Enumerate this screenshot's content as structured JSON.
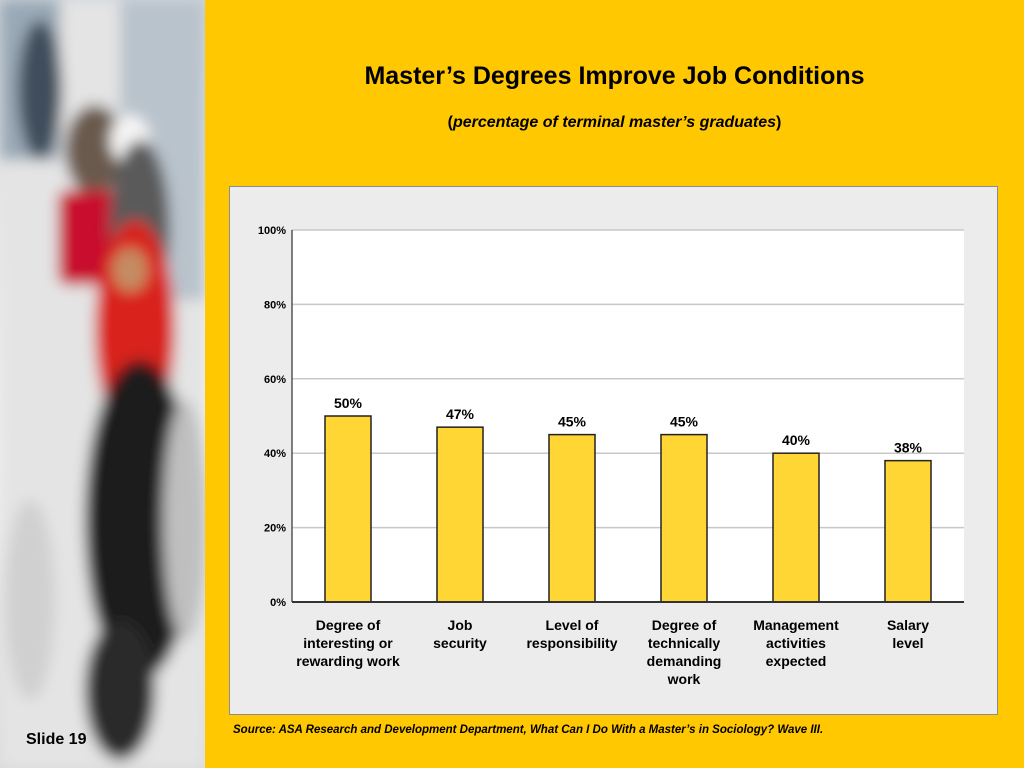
{
  "slide": {
    "title": "Master’s Degrees Improve Job Conditions",
    "subtitle_italic": "percentage of terminal master’s graduates",
    "subtitle_open": "(",
    "subtitle_close": ")",
    "source": "Source: ASA Research and Development Department, What Can I Do With a Master’s in Sociology? Wave III.",
    "slide_number": "Slide 19"
  },
  "colors": {
    "background": "#ffc800",
    "bar_fill": "#ffd633",
    "bar_stroke": "#222222",
    "chart_bg": "#ececec",
    "plot_bg": "#ffffff"
  },
  "chart_data": {
    "type": "bar",
    "categories": [
      [
        "Degree of",
        "interesting or",
        "rewarding work"
      ],
      [
        "Job",
        "security"
      ],
      [
        "Level of",
        "responsibility"
      ],
      [
        "Degree of",
        "technically",
        "demanding",
        "work"
      ],
      [
        "Management",
        "activities",
        "expected"
      ],
      [
        "Salary",
        "level"
      ]
    ],
    "values": [
      50,
      47,
      45,
      45,
      40,
      38
    ],
    "data_labels": [
      "50%",
      "47%",
      "45%",
      "45%",
      "40%",
      "38%"
    ],
    "ylim": [
      0,
      100
    ],
    "yticks": [
      0,
      20,
      40,
      60,
      80,
      100
    ],
    "ytick_labels": [
      "0%",
      "20%",
      "40%",
      "60%",
      "80%",
      "100%"
    ],
    "grid": true,
    "xlabel": "",
    "ylabel": ""
  }
}
